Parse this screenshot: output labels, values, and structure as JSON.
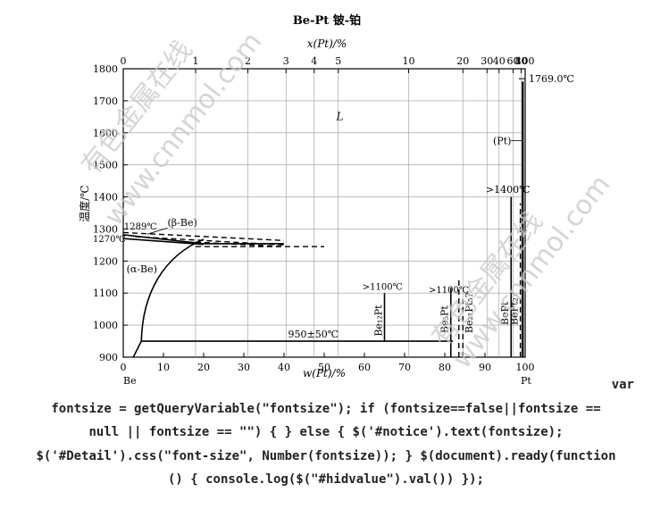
{
  "figure": {
    "title": "Be-Pt 铍-铂",
    "top_axis_label": "x(Pt)/%",
    "bottom_axis_label": "w(Pt)/%",
    "y_axis_label": "温度/℃",
    "left_element": "Be",
    "right_element": "Pt"
  },
  "chart_data": {
    "type": "phase-diagram",
    "y_ticks": [
      900,
      1000,
      1100,
      1200,
      1300,
      1400,
      1500,
      1600,
      1700,
      1800
    ],
    "ylim": [
      900,
      1800
    ],
    "x_ticks_bottom": [
      0,
      10,
      20,
      30,
      40,
      50,
      60,
      70,
      80,
      90,
      100
    ],
    "xlim_bottom": [
      0,
      100
    ],
    "x_ticks_top": [
      {
        "label": "0",
        "w": 0
      },
      {
        "label": "1",
        "w": 18
      },
      {
        "label": "2",
        "w": 31
      },
      {
        "label": "3",
        "w": 40.5
      },
      {
        "label": "4",
        "w": 47.5
      },
      {
        "label": "5",
        "w": 53.5
      },
      {
        "label": "10",
        "w": 71
      },
      {
        "label": "20",
        "w": 84.5
      },
      {
        "label": "30",
        "w": 90.5
      },
      {
        "label": "40",
        "w": 93.5
      },
      {
        "label": "60",
        "w": 97
      },
      {
        "label": "80",
        "w": 99
      },
      {
        "label": "100",
        "w": 100
      }
    ],
    "labels": {
      "liquid": "L",
      "pt_melt": "1769.0℃",
      "pt_phase": "(Pt)",
      "bept_limit": ">1400℃",
      "be_transition": "1289℃",
      "beta_be": "(β-Be)",
      "be_solid": "1270℃",
      "alpha_be": "(α-Be)",
      "be12pt_limit": ">1100℃",
      "be5pt_limit": ">1100℃",
      "eutectoid": "950±50℃",
      "be12pt": "Be₁₂Pt",
      "be5pt": "Be₅Pt",
      "be21pt5": "Be₂₁Pt₅?",
      "bept": "BePt",
      "bept2": "BePt₂?"
    },
    "lines": {
      "eutectoid_T": 950,
      "be12pt": {
        "w": 65,
        "T_top": 1100
      },
      "be5pt": {
        "w": 81.5,
        "T_top": 1100
      },
      "be21pt5": {
        "w": 84.5,
        "T_top": 1080
      },
      "bept": {
        "w": 96.5,
        "T_top": 1400
      },
      "bept2": {
        "w": 98.8,
        "T_top": 1380
      },
      "pt_melt_T": 1769
    }
  },
  "watermarks": [
    "有色金属在线",
    "www.cnnmol.com"
  ],
  "code_text": {
    "line1": "var",
    "line2": "fontsize = getQueryVariable(\"fontsize\"); if (fontsize==false||fontsize ==",
    "line3": "null || fontsize == \"\") { } else { $('#notice').text(fontsize);",
    "line4": "$('#Detail').css(\"font-size\", Number(fontsize)); } $(document).ready(function",
    "line5": "() { console.log($(\"#hidvalue\").val()) });"
  }
}
